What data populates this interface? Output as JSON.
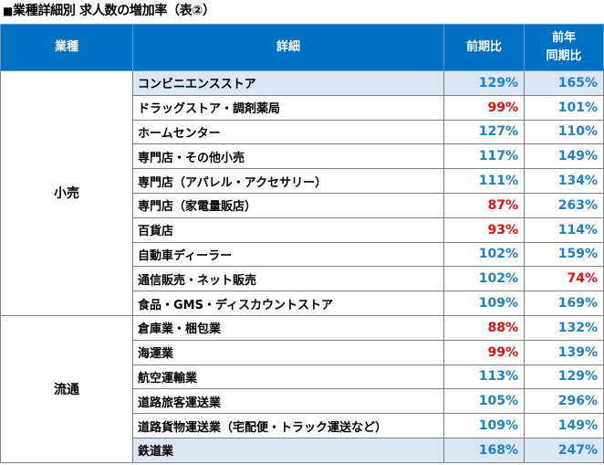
{
  "title": "業種詳細別 求人数の増加率（表②）",
  "title_prefix": "■",
  "headers": {
    "category": "業種",
    "detail": "詳細",
    "prev_period": "前期比",
    "yoy_line1": "前年",
    "yoy_line2": "同期比"
  },
  "colors": {
    "header_bg": "#0070c0",
    "positive": "#2080c8",
    "negative": "#e01010",
    "highlight_row": "#dae6f3"
  },
  "groups": [
    {
      "category": "小売",
      "rows": [
        {
          "detail": "コンビニエンスストア",
          "prev": "129%",
          "prev_color": "blue",
          "yoy": "165%",
          "yoy_color": "blue",
          "highlight": true
        },
        {
          "detail": "ドラッグストア・調剤薬局",
          "prev": "99%",
          "prev_color": "red",
          "yoy": "101%",
          "yoy_color": "blue",
          "highlight": false
        },
        {
          "detail": "ホームセンター",
          "prev": "127%",
          "prev_color": "blue",
          "yoy": "110%",
          "yoy_color": "blue",
          "highlight": false
        },
        {
          "detail": "専門店・その他小売",
          "prev": "117%",
          "prev_color": "blue",
          "yoy": "149%",
          "yoy_color": "blue",
          "highlight": false
        },
        {
          "detail": "専門店（アパレル・アクセサリー）",
          "prev": "111%",
          "prev_color": "blue",
          "yoy": "134%",
          "yoy_color": "blue",
          "highlight": false
        },
        {
          "detail": "専門店（家電量販店）",
          "prev": "87%",
          "prev_color": "red",
          "yoy": "263%",
          "yoy_color": "blue",
          "highlight": false
        },
        {
          "detail": "百貨店",
          "prev": "93%",
          "prev_color": "red",
          "yoy": "114%",
          "yoy_color": "blue",
          "highlight": false
        },
        {
          "detail": "自動車ディーラー",
          "prev": "102%",
          "prev_color": "blue",
          "yoy": "159%",
          "yoy_color": "blue",
          "highlight": false
        },
        {
          "detail": "通信販売・ネット販売",
          "prev": "102%",
          "prev_color": "blue",
          "yoy": "74%",
          "yoy_color": "red",
          "highlight": false
        },
        {
          "detail": "食品・GMS・ディスカウントストア",
          "prev": "109%",
          "prev_color": "blue",
          "yoy": "169%",
          "yoy_color": "blue",
          "highlight": false
        }
      ]
    },
    {
      "category": "流通",
      "rows": [
        {
          "detail": "倉庫業・梱包業",
          "prev": "88%",
          "prev_color": "red",
          "yoy": "132%",
          "yoy_color": "blue",
          "highlight": false
        },
        {
          "detail": "海運業",
          "prev": "99%",
          "prev_color": "red",
          "yoy": "139%",
          "yoy_color": "blue",
          "highlight": false
        },
        {
          "detail": "航空運輸業",
          "prev": "113%",
          "prev_color": "blue",
          "yoy": "129%",
          "yoy_color": "blue",
          "highlight": false
        },
        {
          "detail": "道路旅客運送業",
          "prev": "105%",
          "prev_color": "blue",
          "yoy": "296%",
          "yoy_color": "blue",
          "highlight": false
        },
        {
          "detail": "道路貨物運送業（宅配便・トラック運送など）",
          "prev": "109%",
          "prev_color": "blue",
          "yoy": "149%",
          "yoy_color": "blue",
          "highlight": false
        },
        {
          "detail": "鉄道業",
          "prev": "168%",
          "prev_color": "blue",
          "yoy": "247%",
          "yoy_color": "blue",
          "highlight": true
        }
      ]
    }
  ]
}
